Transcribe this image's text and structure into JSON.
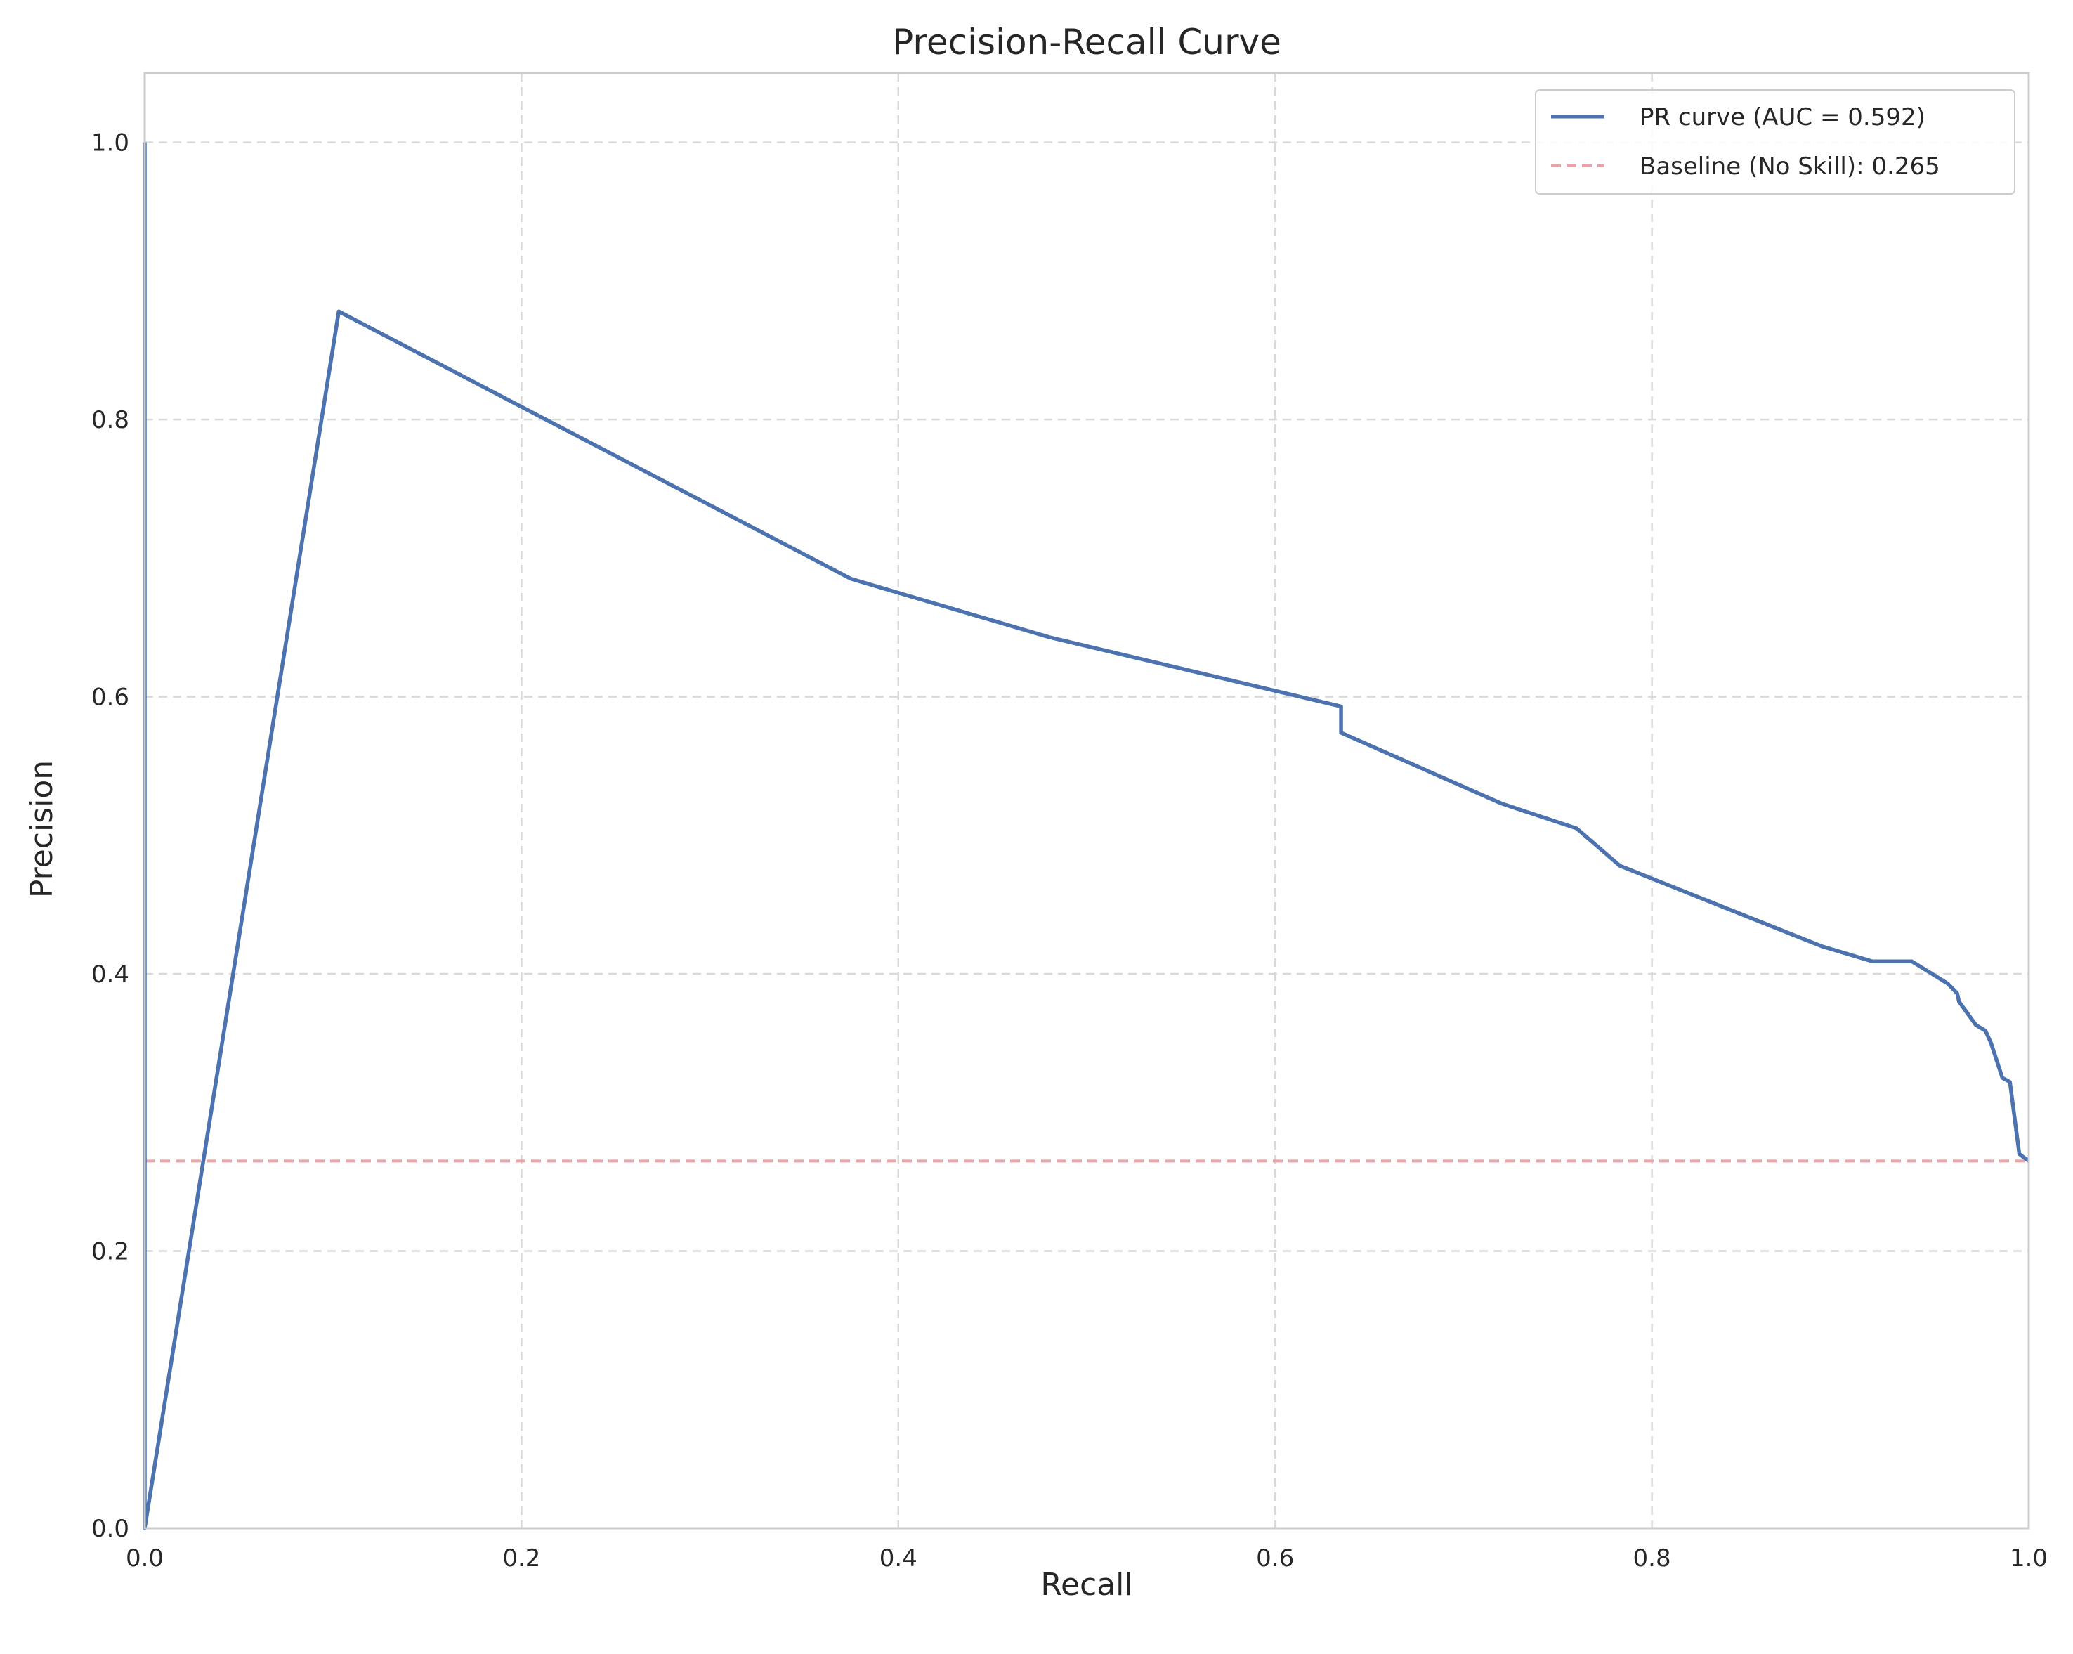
{
  "chart_data": {
    "type": "line",
    "title": "Precision-Recall Curve",
    "xlabel": "Recall",
    "ylabel": "Precision",
    "xlim": [
      0,
      1
    ],
    "ylim": [
      0,
      1.05
    ],
    "x_ticks": [
      0.0,
      0.2,
      0.4,
      0.6,
      0.8,
      1.0
    ],
    "y_ticks": [
      0.0,
      0.2,
      0.4,
      0.6,
      0.8,
      1.0
    ],
    "x_tick_labels": [
      "0.0",
      "0.2",
      "0.4",
      "0.6",
      "0.8",
      "1.0"
    ],
    "y_tick_labels": [
      "0.0",
      "0.2",
      "0.4",
      "0.6",
      "0.8",
      "1.0"
    ],
    "grid": true,
    "legend_position": "top-right",
    "series": [
      {
        "name": "PR curve (AUC = 0.592)",
        "color": "#4c72b0",
        "style": "solid",
        "points": [
          [
            0.0,
            1.0
          ],
          [
            0.0,
            0.0
          ],
          [
            0.103,
            0.878
          ],
          [
            0.375,
            0.685
          ],
          [
            0.48,
            0.643
          ],
          [
            0.635,
            0.593
          ],
          [
            0.635,
            0.574
          ],
          [
            0.72,
            0.523
          ],
          [
            0.76,
            0.505
          ],
          [
            0.783,
            0.478
          ],
          [
            0.89,
            0.42
          ],
          [
            0.917,
            0.409
          ],
          [
            0.938,
            0.409
          ],
          [
            0.957,
            0.393
          ],
          [
            0.962,
            0.386
          ],
          [
            0.963,
            0.38
          ],
          [
            0.972,
            0.363
          ],
          [
            0.977,
            0.359
          ],
          [
            0.98,
            0.35
          ],
          [
            0.986,
            0.325
          ],
          [
            0.99,
            0.322
          ],
          [
            0.995,
            0.27
          ],
          [
            1.0,
            0.265
          ]
        ]
      },
      {
        "name": "Baseline (No Skill): 0.265",
        "color": "#dd8452",
        "line_color": "#e8a3a8",
        "style": "dashed",
        "points": [
          [
            0.0,
            0.265
          ],
          [
            1.0,
            0.265
          ]
        ]
      }
    ]
  }
}
